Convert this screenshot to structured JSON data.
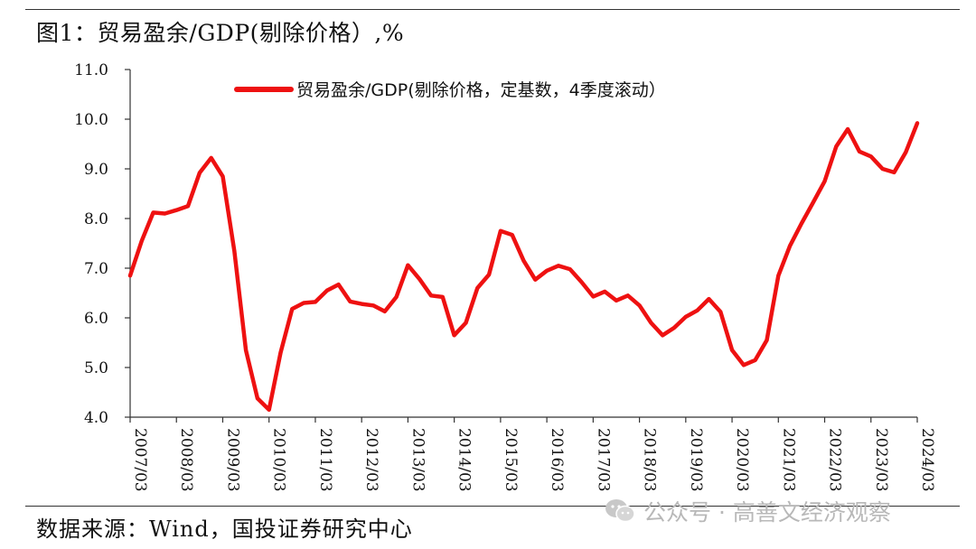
{
  "header": {
    "title": "图1：贸易盈余/GDP(剔除价格）,%"
  },
  "footer": {
    "source": "数据来源：Wind，国投证券研究中心"
  },
  "watermark": {
    "text": "公众号 · 高善文经济观察",
    "icon": "wechat-icon"
  },
  "colors": {
    "series": "#ee1111",
    "axis": "#333333"
  },
  "chart_data": {
    "type": "line",
    "title": "",
    "xlabel": "",
    "ylabel": "",
    "ylim": [
      4.0,
      11.0
    ],
    "yticks": [
      "4.0",
      "5.0",
      "6.0",
      "7.0",
      "8.0",
      "9.0",
      "10.0",
      "11.0"
    ],
    "xticks": [
      "2007/03",
      "2008/03",
      "2009/03",
      "2010/03",
      "2011/03",
      "2012/03",
      "2013/03",
      "2014/03",
      "2015/03",
      "2016/03",
      "2017/03",
      "2018/03",
      "2019/03",
      "2020/03",
      "2021/03",
      "2022/03",
      "2023/03",
      "2024/03"
    ],
    "grid": false,
    "legend_position": "top",
    "x": [
      "2007Q1",
      "2007Q2",
      "2007Q3",
      "2007Q4",
      "2008Q1",
      "2008Q2",
      "2008Q3",
      "2008Q4",
      "2009Q1",
      "2009Q2",
      "2009Q3",
      "2009Q4",
      "2010Q1",
      "2010Q2",
      "2010Q3",
      "2010Q4",
      "2011Q1",
      "2011Q2",
      "2011Q3",
      "2011Q4",
      "2012Q1",
      "2012Q2",
      "2012Q3",
      "2012Q4",
      "2013Q1",
      "2013Q2",
      "2013Q3",
      "2013Q4",
      "2014Q1",
      "2014Q2",
      "2014Q3",
      "2014Q4",
      "2015Q1",
      "2015Q2",
      "2015Q3",
      "2015Q4",
      "2016Q1",
      "2016Q2",
      "2016Q3",
      "2016Q4",
      "2017Q1",
      "2017Q2",
      "2017Q3",
      "2017Q4",
      "2018Q1",
      "2018Q2",
      "2018Q3",
      "2018Q4",
      "2019Q1",
      "2019Q2",
      "2019Q3",
      "2019Q4",
      "2020Q1",
      "2020Q2",
      "2020Q3",
      "2020Q4",
      "2021Q1",
      "2021Q2",
      "2021Q3",
      "2021Q4",
      "2022Q1",
      "2022Q2",
      "2022Q3",
      "2022Q4",
      "2023Q1",
      "2023Q2",
      "2023Q3",
      "2023Q4",
      "2024Q1"
    ],
    "series": [
      {
        "name": "贸易盈余/GDP(剔除价格，定基数，4季度滚动）",
        "values": [
          6.85,
          7.55,
          8.12,
          8.1,
          8.17,
          8.25,
          8.92,
          9.22,
          8.85,
          7.35,
          5.35,
          4.38,
          4.15,
          5.3,
          6.18,
          6.3,
          6.32,
          6.55,
          6.67,
          6.33,
          6.28,
          6.25,
          6.13,
          6.42,
          7.06,
          6.78,
          6.45,
          6.42,
          5.65,
          5.9,
          6.6,
          6.87,
          7.75,
          7.67,
          7.15,
          6.77,
          6.95,
          7.05,
          6.98,
          6.72,
          6.43,
          6.53,
          6.35,
          6.45,
          6.25,
          5.9,
          5.65,
          5.8,
          6.02,
          6.15,
          6.38,
          6.12,
          5.35,
          5.05,
          5.15,
          5.55,
          6.85,
          7.45,
          7.9,
          8.32,
          8.75,
          9.45,
          9.8,
          9.35,
          9.25,
          9.0,
          8.93,
          9.33,
          9.92
        ]
      }
    ]
  }
}
